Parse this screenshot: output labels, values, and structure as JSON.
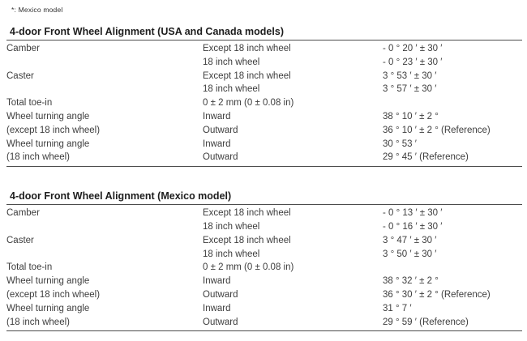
{
  "page": {
    "background": "#ffffff",
    "text_color": "#3d3d3d",
    "rule_color": "#4c4c4c"
  },
  "note": {
    "text": "*: Mexico model"
  },
  "tables": [
    {
      "title": "4-door Front Wheel Alignment (USA and Canada models)",
      "rows": [
        {
          "c1": "Camber",
          "c2": "Except 18 inch wheel",
          "c3": "- 0 ° 20 ′ ± 30 ′"
        },
        {
          "c1": "",
          "c2": "18 inch wheel",
          "c3": "- 0 ° 23 ′ ± 30 ′"
        },
        {
          "c1": "Caster",
          "c2": "Except 18 inch wheel",
          "c3": "3 ° 53 ′ ± 30 ′"
        },
        {
          "c1": "",
          "c2": "18 inch wheel",
          "c3": "3 ° 57 ′ ± 30 ′"
        },
        {
          "c1": "Total toe-in",
          "c2": "0 ± 2 mm (0 ± 0.08 in)",
          "c3": ""
        },
        {
          "c1": "Wheel turning angle",
          "c2": "Inward",
          "c3": "38 ° 10 ′ ± 2 °"
        },
        {
          "c1": "(except 18 inch wheel)",
          "c2": "Outward",
          "c3": "36 ° 10 ′ ± 2 ° (Reference)"
        },
        {
          "c1": "Wheel turning angle",
          "c2": "Inward",
          "c3": "30 ° 53 ′"
        },
        {
          "c1": "(18 inch wheel)",
          "c2": "Outward",
          "c3": "29 ° 45 ′ (Reference)"
        }
      ]
    },
    {
      "title": "4-door Front Wheel Alignment (Mexico model)",
      "rows": [
        {
          "c1": "Camber",
          "c2": "Except 18 inch wheel",
          "c3": "- 0 ° 13 ′ ± 30 ′"
        },
        {
          "c1": "",
          "c2": "18 inch wheel",
          "c3": "- 0 ° 16 ′ ± 30 ′"
        },
        {
          "c1": "Caster",
          "c2": "Except 18 inch wheel",
          "c3": "3 ° 47 ′ ± 30 ′"
        },
        {
          "c1": "",
          "c2": "18 inch wheel",
          "c3": "3 ° 50 ′ ± 30 ′"
        },
        {
          "c1": "Total toe-in",
          "c2": "0 ± 2 mm (0 ± 0.08 in)",
          "c3": ""
        },
        {
          "c1": "Wheel turning angle",
          "c2": "Inward",
          "c3": "38 ° 32 ′ ± 2 °"
        },
        {
          "c1": "(except 18 inch wheel)",
          "c2": "Outward",
          "c3": "36 ° 30 ′ ± 2 ° (Reference)"
        },
        {
          "c1": "Wheel turning angle",
          "c2": "Inward",
          "c3": "31 ° 7 ′"
        },
        {
          "c1": "(18 inch wheel)",
          "c2": "Outward",
          "c3": "29 ° 59 ′ (Reference)"
        }
      ]
    }
  ]
}
